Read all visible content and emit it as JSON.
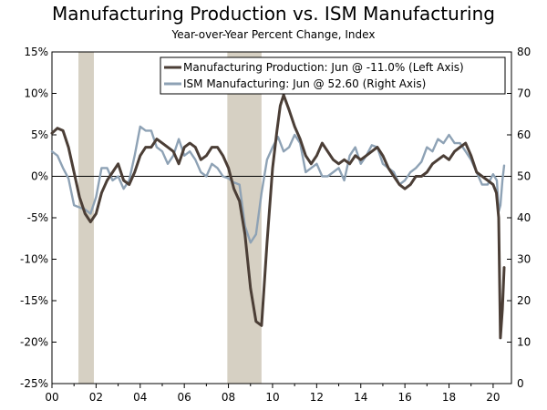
{
  "chart_data": {
    "type": "line",
    "title": "Manufacturing Production vs. ISM Manufacturing",
    "subtitle": "Year-over-Year Percent Change, Index",
    "x_range": [
      2000.0,
      2020.83
    ],
    "x_tick_values": [
      2000,
      2002,
      2004,
      2006,
      2008,
      2010,
      2012,
      2014,
      2016,
      2018,
      2020
    ],
    "x_tick_labels": [
      "00",
      "02",
      "04",
      "06",
      "08",
      "10",
      "12",
      "14",
      "16",
      "18",
      "20"
    ],
    "left_axis": {
      "ylim": [
        -25,
        15
      ],
      "ticks": [
        15,
        10,
        5,
        0,
        -5,
        -10,
        -15,
        -20,
        -25
      ],
      "tick_labels": [
        "15%",
        "10%",
        "5%",
        "0%",
        "-5%",
        "-10%",
        "-15%",
        "-20%",
        "-25%"
      ]
    },
    "right_axis": {
      "ylim": [
        0,
        80
      ],
      "ticks": [
        80,
        70,
        60,
        50,
        40,
        30,
        20,
        10,
        0
      ],
      "tick_labels": [
        "80",
        "70",
        "60",
        "50",
        "40",
        "30",
        "20",
        "10",
        "0"
      ]
    },
    "recessions": [
      {
        "start": 2001.2,
        "end": 2001.9
      },
      {
        "start": 2007.95,
        "end": 2009.5
      }
    ],
    "colors": {
      "production": "#4b3e36",
      "ism": "#8ea2b5",
      "recession": "#d6d0c3"
    },
    "series": [
      {
        "name": "Manufacturing Production",
        "legend": "Manufacturing Production: Jun @ -11.0% (Left Axis)",
        "axis": "left",
        "points": [
          [
            2000.0,
            5.2
          ],
          [
            2000.25,
            5.8
          ],
          [
            2000.5,
            5.5
          ],
          [
            2000.75,
            3.5
          ],
          [
            2001.0,
            0.5
          ],
          [
            2001.25,
            -2.5
          ],
          [
            2001.5,
            -4.5
          ],
          [
            2001.75,
            -5.5
          ],
          [
            2002.0,
            -4.5
          ],
          [
            2002.25,
            -2.0
          ],
          [
            2002.5,
            -0.5
          ],
          [
            2002.75,
            0.5
          ],
          [
            2003.0,
            1.5
          ],
          [
            2003.25,
            -0.5
          ],
          [
            2003.5,
            -1.0
          ],
          [
            2003.75,
            0.5
          ],
          [
            2004.0,
            2.5
          ],
          [
            2004.25,
            3.5
          ],
          [
            2004.5,
            3.5
          ],
          [
            2004.75,
            4.5
          ],
          [
            2005.0,
            4.0
          ],
          [
            2005.25,
            3.5
          ],
          [
            2005.5,
            3.0
          ],
          [
            2005.75,
            1.5
          ],
          [
            2006.0,
            3.5
          ],
          [
            2006.25,
            4.0
          ],
          [
            2006.5,
            3.5
          ],
          [
            2006.75,
            2.0
          ],
          [
            2007.0,
            2.5
          ],
          [
            2007.25,
            3.5
          ],
          [
            2007.5,
            3.5
          ],
          [
            2007.75,
            2.5
          ],
          [
            2008.0,
            1.0
          ],
          [
            2008.25,
            -1.5
          ],
          [
            2008.5,
            -3.0
          ],
          [
            2008.75,
            -7.0
          ],
          [
            2009.0,
            -13.5
          ],
          [
            2009.25,
            -17.5
          ],
          [
            2009.5,
            -18.0
          ],
          [
            2009.6,
            -14.0
          ],
          [
            2009.75,
            -8.0
          ],
          [
            2010.0,
            1.0
          ],
          [
            2010.2,
            5.5
          ],
          [
            2010.35,
            8.5
          ],
          [
            2010.5,
            9.8
          ],
          [
            2010.75,
            8.0
          ],
          [
            2011.0,
            6.0
          ],
          [
            2011.25,
            4.5
          ],
          [
            2011.5,
            2.5
          ],
          [
            2011.75,
            1.5
          ],
          [
            2012.0,
            2.5
          ],
          [
            2012.25,
            4.0
          ],
          [
            2012.5,
            3.0
          ],
          [
            2012.75,
            2.0
          ],
          [
            2013.0,
            1.5
          ],
          [
            2013.25,
            2.0
          ],
          [
            2013.5,
            1.5
          ],
          [
            2013.75,
            2.5
          ],
          [
            2014.0,
            2.0
          ],
          [
            2014.25,
            2.5
          ],
          [
            2014.5,
            3.0
          ],
          [
            2014.75,
            3.5
          ],
          [
            2015.0,
            2.5
          ],
          [
            2015.25,
            1.0
          ],
          [
            2015.5,
            0.0
          ],
          [
            2015.75,
            -1.0
          ],
          [
            2016.0,
            -1.5
          ],
          [
            2016.25,
            -1.0
          ],
          [
            2016.5,
            0.0
          ],
          [
            2016.75,
            0.0
          ],
          [
            2017.0,
            0.5
          ],
          [
            2017.25,
            1.5
          ],
          [
            2017.5,
            2.0
          ],
          [
            2017.75,
            2.5
          ],
          [
            2018.0,
            2.0
          ],
          [
            2018.25,
            3.0
          ],
          [
            2018.5,
            3.5
          ],
          [
            2018.75,
            4.0
          ],
          [
            2019.0,
            2.5
          ],
          [
            2019.25,
            0.5
          ],
          [
            2019.5,
            0.0
          ],
          [
            2019.75,
            -0.5
          ],
          [
            2020.0,
            -1.0
          ],
          [
            2020.15,
            -2.0
          ],
          [
            2020.25,
            -5.0
          ],
          [
            2020.33,
            -19.5
          ],
          [
            2020.42,
            -16.0
          ],
          [
            2020.5,
            -11.0
          ]
        ]
      },
      {
        "name": "ISM Manufacturing",
        "legend": "ISM Manufacturing: Jun @ 52.60 (Right Axis)",
        "axis": "right",
        "points": [
          [
            2000.0,
            56
          ],
          [
            2000.25,
            55
          ],
          [
            2000.5,
            52
          ],
          [
            2000.75,
            49.5
          ],
          [
            2001.0,
            43
          ],
          [
            2001.25,
            42.5
          ],
          [
            2001.5,
            42
          ],
          [
            2001.75,
            41
          ],
          [
            2002.0,
            45
          ],
          [
            2002.25,
            52
          ],
          [
            2002.5,
            52
          ],
          [
            2002.75,
            49
          ],
          [
            2003.0,
            50
          ],
          [
            2003.25,
            47
          ],
          [
            2003.5,
            49
          ],
          [
            2003.75,
            55
          ],
          [
            2004.0,
            62
          ],
          [
            2004.25,
            61
          ],
          [
            2004.5,
            61
          ],
          [
            2004.75,
            57
          ],
          [
            2005.0,
            56
          ],
          [
            2005.25,
            53
          ],
          [
            2005.5,
            55
          ],
          [
            2005.75,
            59
          ],
          [
            2006.0,
            55
          ],
          [
            2006.25,
            56
          ],
          [
            2006.5,
            54
          ],
          [
            2006.75,
            51
          ],
          [
            2007.0,
            50
          ],
          [
            2007.25,
            53
          ],
          [
            2007.5,
            52
          ],
          [
            2007.75,
            50
          ],
          [
            2008.0,
            49.5
          ],
          [
            2008.25,
            48.5
          ],
          [
            2008.5,
            48
          ],
          [
            2008.75,
            38
          ],
          [
            2009.0,
            34
          ],
          [
            2009.25,
            36
          ],
          [
            2009.5,
            46
          ],
          [
            2009.75,
            54
          ],
          [
            2010.0,
            57
          ],
          [
            2010.25,
            59.5
          ],
          [
            2010.5,
            56
          ],
          [
            2010.75,
            57
          ],
          [
            2011.0,
            60
          ],
          [
            2011.25,
            58
          ],
          [
            2011.5,
            51
          ],
          [
            2011.75,
            52
          ],
          [
            2012.0,
            53
          ],
          [
            2012.25,
            50
          ],
          [
            2012.5,
            50
          ],
          [
            2012.75,
            51
          ],
          [
            2013.0,
            52
          ],
          [
            2013.25,
            49
          ],
          [
            2013.5,
            55
          ],
          [
            2013.75,
            57
          ],
          [
            2014.0,
            53
          ],
          [
            2014.25,
            55
          ],
          [
            2014.5,
            57.5
          ],
          [
            2014.75,
            57
          ],
          [
            2015.0,
            53
          ],
          [
            2015.25,
            52
          ],
          [
            2015.5,
            51
          ],
          [
            2015.75,
            48
          ],
          [
            2016.0,
            49
          ],
          [
            2016.25,
            51
          ],
          [
            2016.5,
            52
          ],
          [
            2016.75,
            53.5
          ],
          [
            2017.0,
            57
          ],
          [
            2017.25,
            56
          ],
          [
            2017.5,
            59
          ],
          [
            2017.75,
            58
          ],
          [
            2018.0,
            60
          ],
          [
            2018.25,
            58
          ],
          [
            2018.5,
            58
          ],
          [
            2018.75,
            56
          ],
          [
            2019.0,
            54
          ],
          [
            2019.25,
            51
          ],
          [
            2019.5,
            48
          ],
          [
            2019.75,
            48
          ],
          [
            2020.0,
            50.5
          ],
          [
            2020.17,
            49
          ],
          [
            2020.25,
            41.5
          ],
          [
            2020.33,
            43
          ],
          [
            2020.42,
            49
          ],
          [
            2020.5,
            52.6
          ]
        ]
      }
    ]
  }
}
